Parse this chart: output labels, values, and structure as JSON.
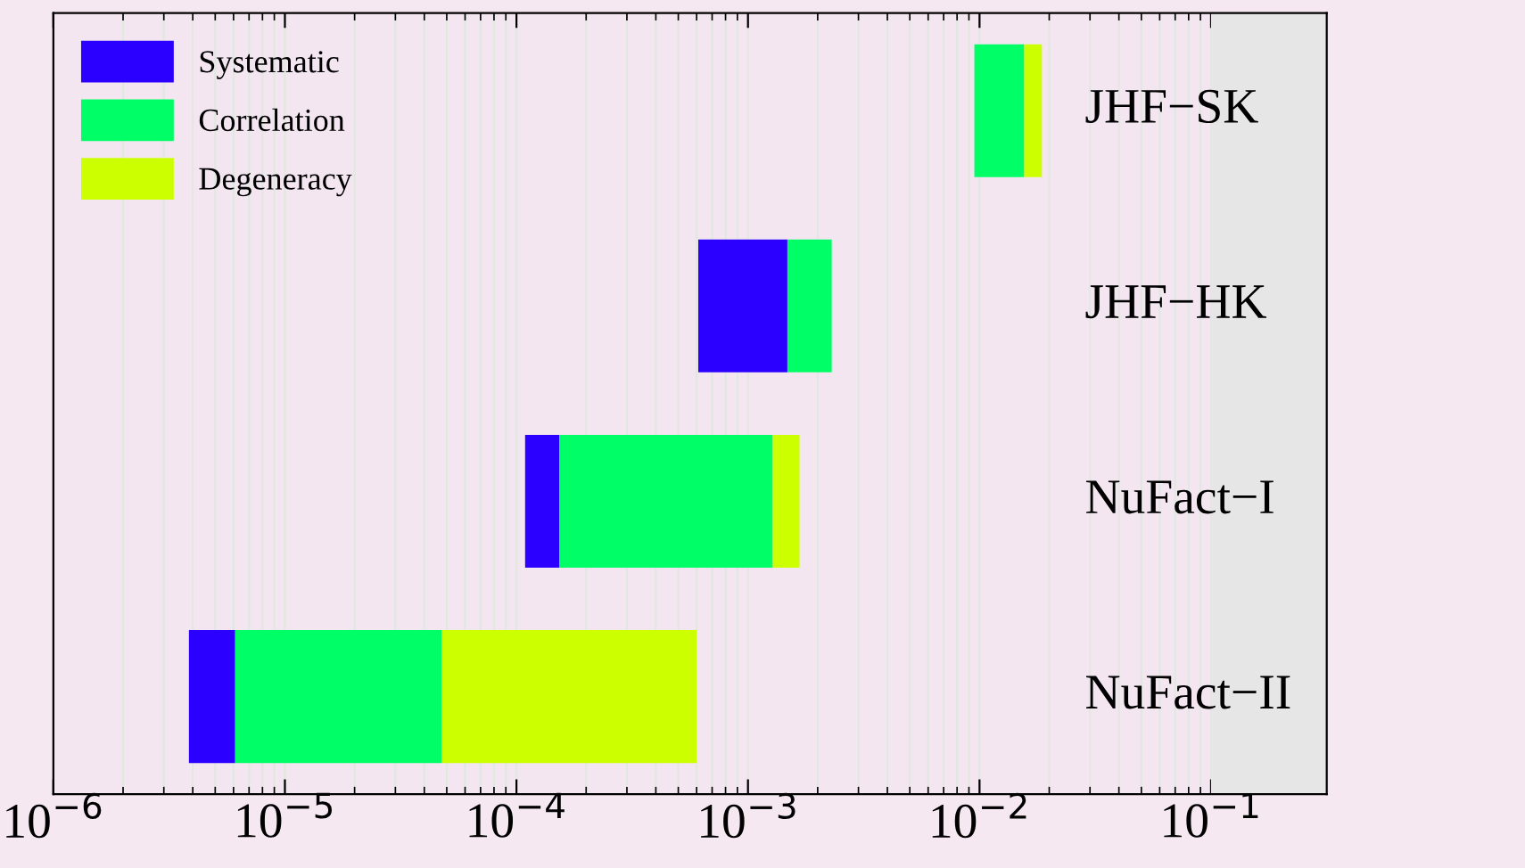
{
  "chart_data": {
    "type": "bar",
    "orientation": "horizontal",
    "log": "x",
    "categories": [
      "JHF−SK",
      "JHF−HK",
      "NuFact−I",
      "NuFact−II"
    ],
    "series": [
      {
        "name": "Systematic",
        "color": "#2b00ff",
        "base": [
          null,
          0.00061,
          0.000109,
          3.85e-06
        ],
        "values": [
          null,
          0.00087,
          4.4e-05,
          2.25e-06
        ]
      },
      {
        "name": "Correlation",
        "color": "#00ff66",
        "base": [
          0.0095,
          0.00148,
          0.000153,
          6.1e-06
        ],
        "values": [
          0.0061,
          0.00082,
          0.001127,
          4.14e-05
        ]
      },
      {
        "name": "Degeneracy",
        "color": "#ccff00",
        "base": [
          0.0156,
          null,
          0.00128,
          4.75e-05
        ],
        "values": [
          0.003,
          null,
          0.00039,
          0.0005525
        ]
      }
    ],
    "xlim": [
      1e-06,
      0.316
    ],
    "xticks": [
      {
        "value": 1e-06,
        "label": "10$^{−6}$"
      },
      {
        "value": 1e-05,
        "label": "10$^{−5}$"
      },
      {
        "value": 0.0001,
        "label": "10$^{−4}$"
      },
      {
        "value": 0.001,
        "label": "10$^{−3}$"
      },
      {
        "value": 0.01,
        "label": "10$^{−2}$"
      },
      {
        "value": 0.1,
        "label": "10$^{−1}$"
      }
    ],
    "bands": [
      {
        "axis": "x",
        "from": 0.1,
        "to": 0.316,
        "color": "#e6e6e6"
      }
    ],
    "grid": "x",
    "legend": "top left"
  }
}
